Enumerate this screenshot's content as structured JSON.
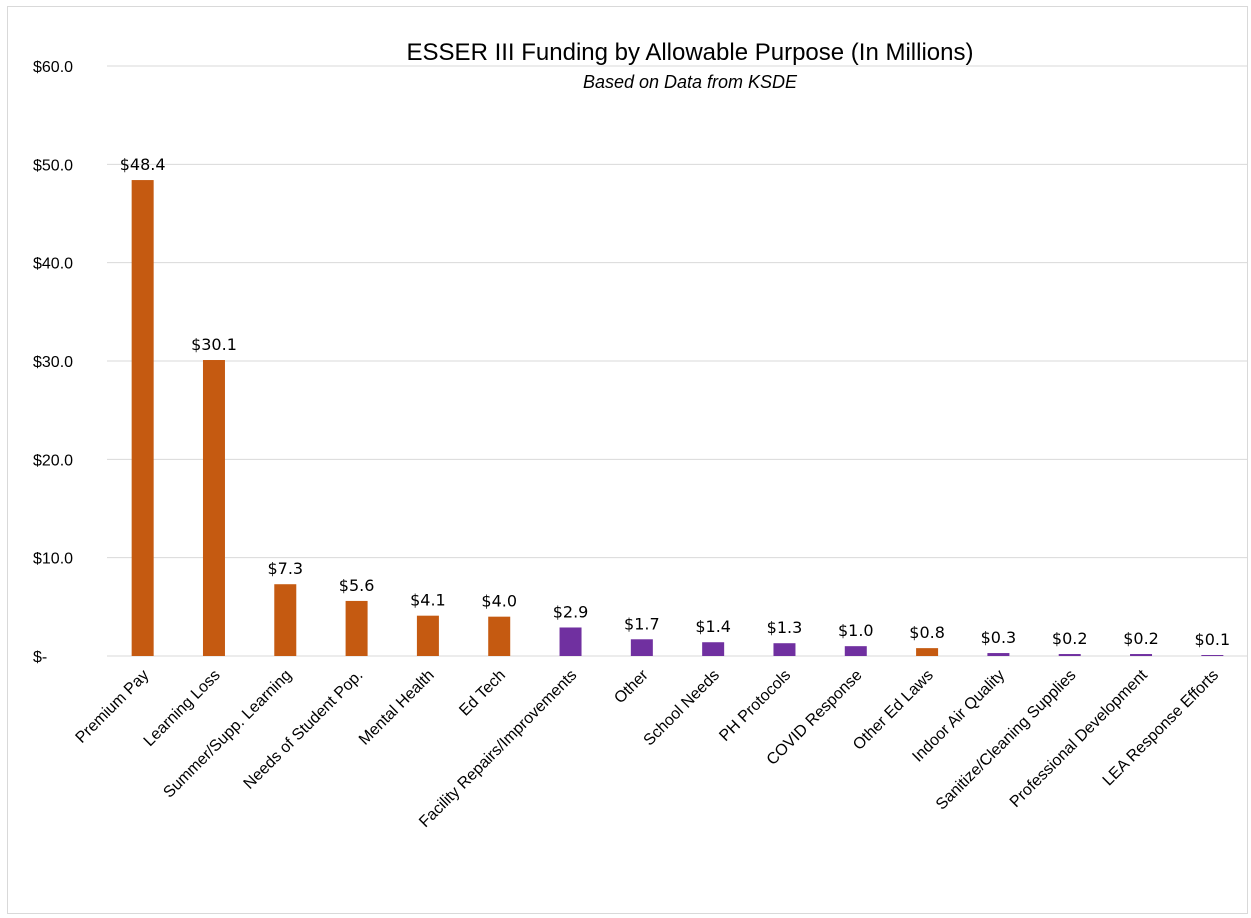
{
  "chart_data": {
    "type": "bar",
    "title": "ESSER III Funding by Allowable Purpose (In Millions)",
    "subtitle": "Based on Data from KSDE",
    "xlabel": "",
    "ylabel": "",
    "ylim": [
      0,
      60
    ],
    "yticks": [
      0,
      10,
      20,
      30,
      40,
      50,
      60
    ],
    "ytick_labels": [
      "$-",
      "$10.0",
      "$20.0",
      "$30.0",
      "$40.0",
      "$50.0",
      "$60.0"
    ],
    "grid": true,
    "legend": "none",
    "colors": {
      "orange": "#c55a11",
      "purple": "#7030a0"
    },
    "categories": [
      "Premium Pay",
      "Learning Loss",
      "Summer/Supp. Learning",
      "Needs of Student Pop.",
      "Mental Health",
      "Ed Tech",
      "Facility Repairs/Improvements",
      "Other",
      "School Needs",
      "PH Protocols",
      "COVID Response",
      "Other Ed Laws",
      "Indoor Air Quality",
      "Sanitize/Cleaning Supplies",
      "Professional Development",
      "LEA Response Efforts"
    ],
    "values": [
      48.4,
      30.1,
      7.3,
      5.6,
      4.1,
      4.0,
      2.9,
      1.7,
      1.4,
      1.3,
      1.0,
      0.8,
      0.3,
      0.2,
      0.2,
      0.1
    ],
    "data_labels": [
      "$48.4",
      "$30.1",
      "$7.3",
      "$5.6",
      "$4.1",
      "$4.0",
      "$2.9",
      "$1.7",
      "$1.4",
      "$1.3",
      "$1.0",
      "$0.8",
      "$0.3",
      "$0.2",
      "$0.2",
      "$0.1"
    ],
    "bar_colors": [
      "#c55a11",
      "#c55a11",
      "#c55a11",
      "#c55a11",
      "#c55a11",
      "#c55a11",
      "#7030a0",
      "#7030a0",
      "#7030a0",
      "#7030a0",
      "#7030a0",
      "#c55a11",
      "#7030a0",
      "#7030a0",
      "#7030a0",
      "#7030a0"
    ]
  }
}
